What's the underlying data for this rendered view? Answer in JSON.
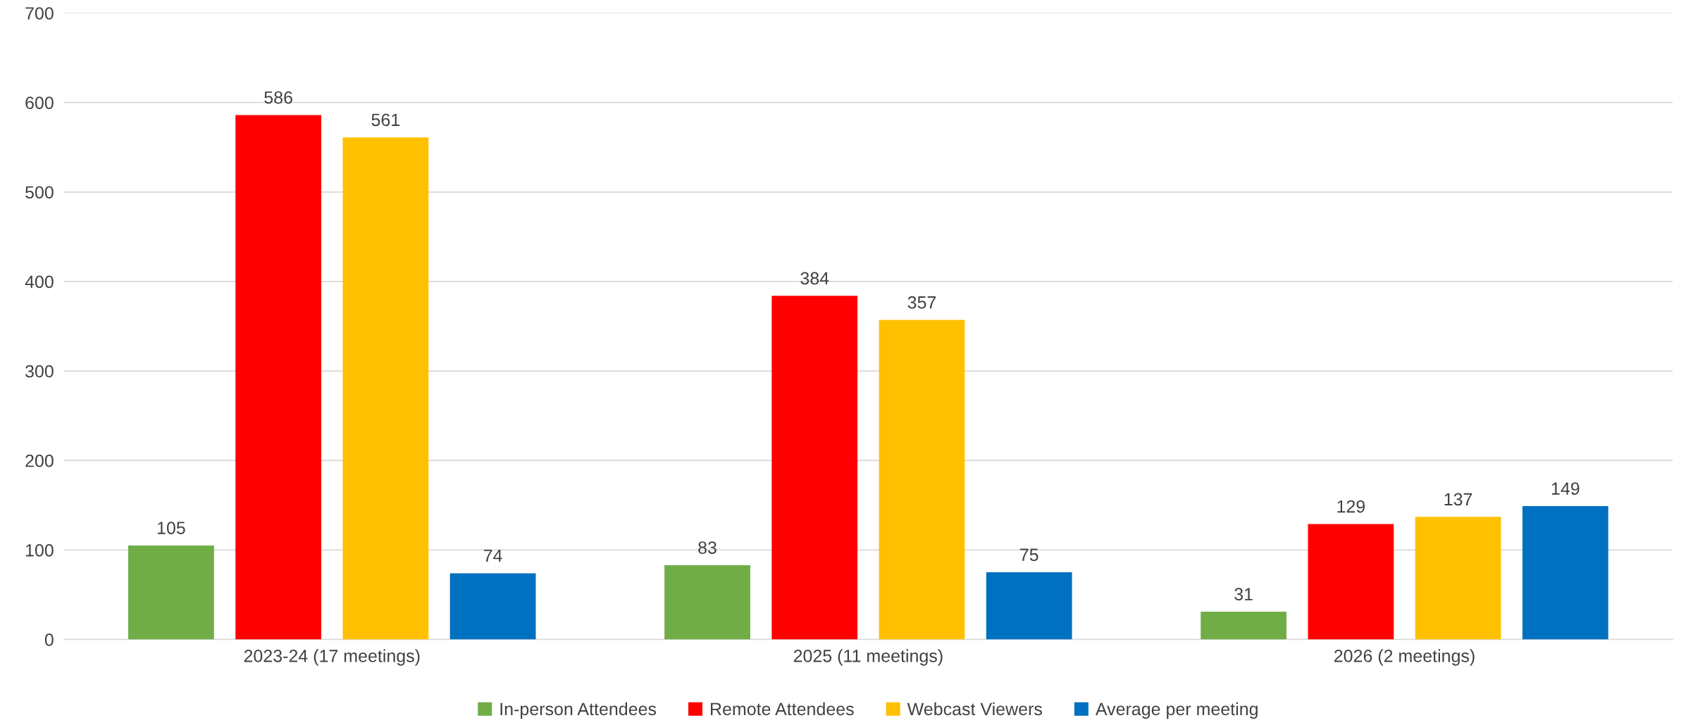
{
  "chart_data": {
    "type": "bar",
    "categories": [
      "2023-24 (17 meetings)",
      "2025 (11 meetings)",
      "2026 (2 meetings)"
    ],
    "series": [
      {
        "name": "In-person Attendees",
        "color": "#70ad47",
        "values": [
          105,
          83,
          31
        ]
      },
      {
        "name": "Remote Attendees",
        "color": "#ff0000",
        "values": [
          586,
          384,
          129
        ]
      },
      {
        "name": "Webcast Viewers",
        "color": "#ffc000",
        "values": [
          561,
          357,
          137
        ]
      },
      {
        "name": "Average per meeting",
        "color": "#0070c0",
        "values": [
          74,
          75,
          149
        ]
      }
    ],
    "ylim": [
      0,
      700
    ],
    "yticks": [
      0,
      100,
      200,
      300,
      400,
      500,
      600,
      700
    ],
    "grid": "y",
    "legend": "bottom",
    "data_labels": true
  }
}
